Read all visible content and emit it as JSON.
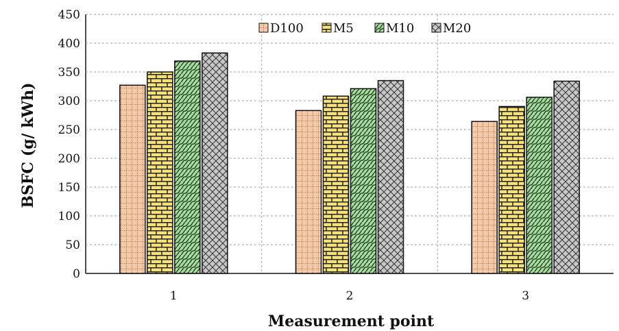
{
  "chart_data": {
    "type": "bar",
    "title": "",
    "xlabel": "Measurement point",
    "ylabel": "BSFC (g/ kWh)",
    "categories": [
      "1",
      "2",
      "3"
    ],
    "ylim": [
      0,
      450
    ],
    "yticks": [
      0,
      50,
      100,
      150,
      200,
      250,
      300,
      350,
      400,
      450
    ],
    "grid": true,
    "legend_position": "top-center",
    "series": [
      {
        "name": "D100",
        "values": [
          327,
          283,
          264
        ],
        "color": "#f9c9a8",
        "pattern": "dotted-grid"
      },
      {
        "name": "M5",
        "values": [
          350,
          308,
          290
        ],
        "color": "#f7e27a",
        "pattern": "brick"
      },
      {
        "name": "M10",
        "values": [
          369,
          321,
          306
        ],
        "color": "#a8dca0",
        "pattern": "wave"
      },
      {
        "name": "M20",
        "values": [
          383,
          335,
          334
        ],
        "color": "#c8c8c8",
        "pattern": "crosshatch"
      }
    ]
  }
}
